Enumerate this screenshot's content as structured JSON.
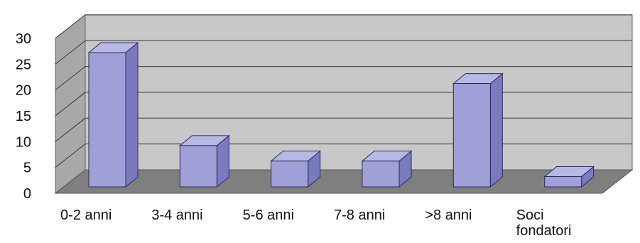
{
  "chart_data": {
    "type": "bar",
    "categories": [
      [
        "0-2 anni"
      ],
      [
        "3-4 anni"
      ],
      [
        "5-6 anni"
      ],
      [
        "7-8 anni"
      ],
      [
        ">8 anni"
      ],
      [
        "Soci",
        "fondatori"
      ]
    ],
    "values": [
      26,
      8,
      5,
      5,
      20,
      2
    ],
    "title": "",
    "xlabel": "",
    "ylabel": "",
    "ylim": [
      0,
      30
    ],
    "yticks": [
      "0",
      "5",
      "10",
      "15",
      "20",
      "25",
      "30"
    ],
    "grid": true,
    "legend": "none",
    "three_d": true,
    "colors": {
      "bar_front": "#a0a0d8",
      "bar_side": "#7a7abf",
      "bar_top": "#b8b8e6",
      "bar_outline": "#2a2a5a",
      "back_wall": "#c8c8c8",
      "side_wall": "#a8a8a8",
      "floor": "#7f7f7f",
      "gridline": "#3a3a3a"
    }
  }
}
